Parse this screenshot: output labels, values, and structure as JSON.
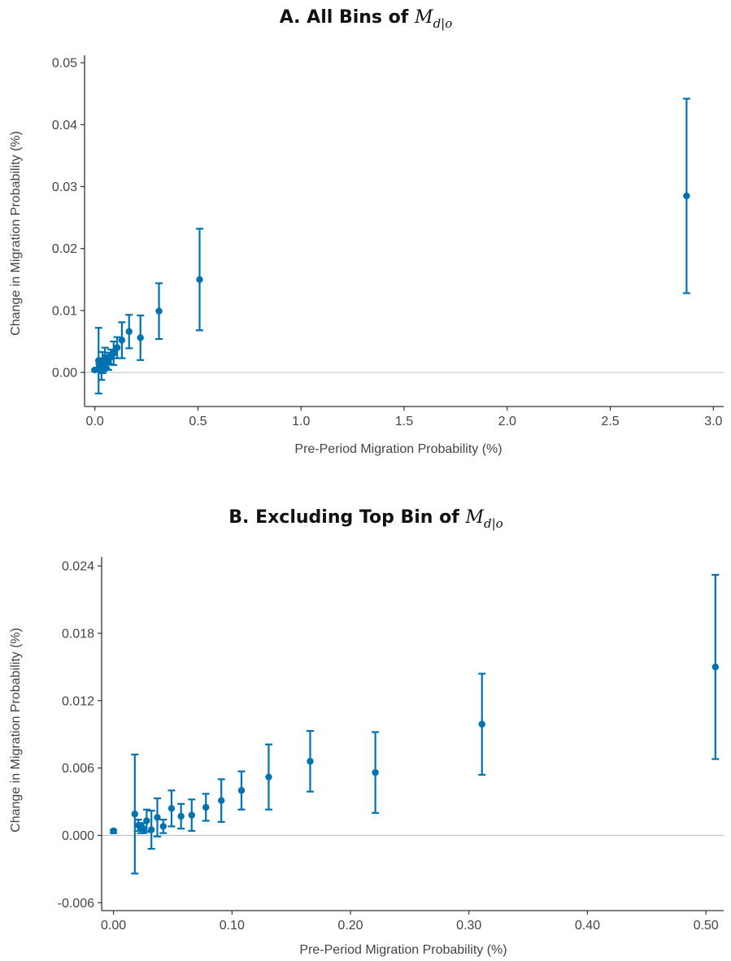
{
  "chart_data": [
    {
      "type": "scatter",
      "title_text": "A. All Bins of ",
      "title_math": "M",
      "title_math_sub": "d|o",
      "xlabel": "Pre-Period Migration Probability (%)",
      "ylabel": "Change in Migration Probability (%)",
      "xlim": [
        -0.05,
        3.05
      ],
      "ylim": [
        -0.0055,
        0.0512
      ],
      "xticks": [
        0.0,
        0.5,
        1.0,
        1.5,
        2.0,
        2.5,
        3.0
      ],
      "xtick_labels": [
        "0.0",
        "0.5",
        "1.0",
        "1.5",
        "2.0",
        "2.5",
        "3.0"
      ],
      "yticks": [
        0.0,
        0.01,
        0.02,
        0.03,
        0.04,
        0.05
      ],
      "ytick_labels": [
        "0.00",
        "0.01",
        "0.02",
        "0.03",
        "0.04",
        "0.05"
      ],
      "reference_line_y": 0,
      "color": "#0072B2",
      "points": [
        {
          "x": 0.0,
          "y": 0.0004,
          "lo": 0.0002,
          "hi": 0.0005
        },
        {
          "x": 0.018,
          "y": 0.0019,
          "lo": -0.0034,
          "hi": 0.0072
        },
        {
          "x": 0.021,
          "y": 0.0009,
          "lo": 0.0004,
          "hi": 0.0014
        },
        {
          "x": 0.023,
          "y": 0.0006,
          "lo": 0.0002,
          "hi": 0.001
        },
        {
          "x": 0.025,
          "y": 0.0006,
          "lo": 0.0002,
          "hi": 0.0011
        },
        {
          "x": 0.028,
          "y": 0.0013,
          "lo": 0.0003,
          "hi": 0.0023
        },
        {
          "x": 0.032,
          "y": 0.0005,
          "lo": -0.0012,
          "hi": 0.0022
        },
        {
          "x": 0.037,
          "y": 0.0016,
          "lo": -0.0001,
          "hi": 0.0033
        },
        {
          "x": 0.042,
          "y": 0.0008,
          "lo": 0.0002,
          "hi": 0.0014
        },
        {
          "x": 0.049,
          "y": 0.0024,
          "lo": 0.0008,
          "hi": 0.004
        },
        {
          "x": 0.057,
          "y": 0.0017,
          "lo": 0.0006,
          "hi": 0.0028
        },
        {
          "x": 0.066,
          "y": 0.0018,
          "lo": 0.0004,
          "hi": 0.0032
        },
        {
          "x": 0.078,
          "y": 0.0025,
          "lo": 0.0013,
          "hi": 0.0037
        },
        {
          "x": 0.091,
          "y": 0.0031,
          "lo": 0.0012,
          "hi": 0.005
        },
        {
          "x": 0.108,
          "y": 0.004,
          "lo": 0.0023,
          "hi": 0.0057
        },
        {
          "x": 0.131,
          "y": 0.0052,
          "lo": 0.0023,
          "hi": 0.0081
        },
        {
          "x": 0.166,
          "y": 0.0066,
          "lo": 0.0039,
          "hi": 0.0093
        },
        {
          "x": 0.221,
          "y": 0.0056,
          "lo": 0.002,
          "hi": 0.0092
        },
        {
          "x": 0.311,
          "y": 0.0099,
          "lo": 0.0054,
          "hi": 0.0144
        },
        {
          "x": 0.508,
          "y": 0.015,
          "lo": 0.0068,
          "hi": 0.0232
        },
        {
          "x": 2.87,
          "y": 0.0285,
          "lo": 0.0128,
          "hi": 0.0442
        }
      ]
    },
    {
      "type": "scatter",
      "title_text": "B. Excluding Top Bin of ",
      "title_math": "M",
      "title_math_sub": "d|o",
      "xlabel": "Pre-Period Migration Probability (%)",
      "ylabel": "Change in Migration Probability (%)",
      "xlim": [
        -0.01,
        0.515
      ],
      "ylim": [
        -0.0067,
        0.0248
      ],
      "xticks": [
        0.0,
        0.1,
        0.2,
        0.3,
        0.4,
        0.5
      ],
      "xtick_labels": [
        "0.00",
        "0.10",
        "0.20",
        "0.30",
        "0.40",
        "0.50"
      ],
      "yticks": [
        -0.006,
        0.0,
        0.006,
        0.012,
        0.018,
        0.024
      ],
      "ytick_labels": [
        "-0.006",
        "0.000",
        "0.006",
        "0.012",
        "0.018",
        "0.024"
      ],
      "reference_line_y": 0,
      "color": "#0072B2",
      "points": [
        {
          "x": 0.0,
          "y": 0.0004,
          "lo": 0.0002,
          "hi": 0.0005
        },
        {
          "x": 0.018,
          "y": 0.0019,
          "lo": -0.0034,
          "hi": 0.0072
        },
        {
          "x": 0.021,
          "y": 0.0009,
          "lo": 0.0004,
          "hi": 0.0014
        },
        {
          "x": 0.023,
          "y": 0.0006,
          "lo": 0.0002,
          "hi": 0.001
        },
        {
          "x": 0.025,
          "y": 0.0006,
          "lo": 0.0002,
          "hi": 0.0011
        },
        {
          "x": 0.028,
          "y": 0.0013,
          "lo": 0.0003,
          "hi": 0.0023
        },
        {
          "x": 0.032,
          "y": 0.0005,
          "lo": -0.0012,
          "hi": 0.0022
        },
        {
          "x": 0.037,
          "y": 0.0016,
          "lo": -0.0001,
          "hi": 0.0033
        },
        {
          "x": 0.042,
          "y": 0.0008,
          "lo": 0.0002,
          "hi": 0.0014
        },
        {
          "x": 0.049,
          "y": 0.0024,
          "lo": 0.0008,
          "hi": 0.004
        },
        {
          "x": 0.057,
          "y": 0.0017,
          "lo": 0.0006,
          "hi": 0.0028
        },
        {
          "x": 0.066,
          "y": 0.0018,
          "lo": 0.0004,
          "hi": 0.0032
        },
        {
          "x": 0.078,
          "y": 0.0025,
          "lo": 0.0013,
          "hi": 0.0037
        },
        {
          "x": 0.091,
          "y": 0.0031,
          "lo": 0.0012,
          "hi": 0.005
        },
        {
          "x": 0.108,
          "y": 0.004,
          "lo": 0.0023,
          "hi": 0.0057
        },
        {
          "x": 0.131,
          "y": 0.0052,
          "lo": 0.0023,
          "hi": 0.0081
        },
        {
          "x": 0.166,
          "y": 0.0066,
          "lo": 0.0039,
          "hi": 0.0093
        },
        {
          "x": 0.221,
          "y": 0.0056,
          "lo": 0.002,
          "hi": 0.0092
        },
        {
          "x": 0.311,
          "y": 0.0099,
          "lo": 0.0054,
          "hi": 0.0144
        },
        {
          "x": 0.508,
          "y": 0.015,
          "lo": 0.0068,
          "hi": 0.0232
        }
      ]
    }
  ]
}
